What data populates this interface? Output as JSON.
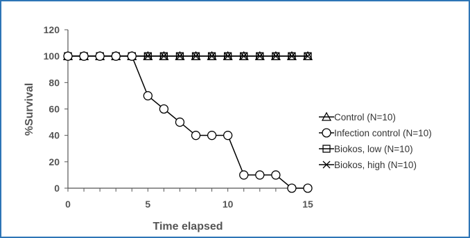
{
  "chart_data": {
    "type": "line",
    "xlabel": "Time elapsed",
    "ylabel": "%Survival",
    "xlim": [
      0,
      15
    ],
    "ylim": [
      0,
      120
    ],
    "x_ticks": [
      0,
      5,
      10,
      15
    ],
    "y_ticks": [
      0,
      20,
      40,
      60,
      80,
      100,
      120
    ],
    "grid": false,
    "legend_position": "right",
    "series": [
      {
        "name": "Control (N=10)",
        "marker": "triangle",
        "x": [
          0,
          1,
          2,
          3,
          4,
          5,
          6,
          7,
          8,
          9,
          10,
          11,
          12,
          13,
          14,
          15
        ],
        "values": [
          100,
          100,
          100,
          100,
          100,
          100,
          100,
          100,
          100,
          100,
          100,
          100,
          100,
          100,
          100,
          100
        ]
      },
      {
        "name": "Infection control (N=10)",
        "marker": "circle",
        "x": [
          0,
          1,
          2,
          3,
          4,
          5,
          6,
          7,
          8,
          9,
          10,
          11,
          12,
          13,
          14,
          15
        ],
        "values": [
          100,
          100,
          100,
          100,
          100,
          70,
          60,
          50,
          40,
          40,
          40,
          10,
          10,
          10,
          0,
          0
        ]
      },
      {
        "name": "Biokos, low (N=10)",
        "marker": "square",
        "x": [
          0,
          1,
          2,
          3,
          4,
          5,
          6,
          7,
          8,
          9,
          10,
          11,
          12,
          13,
          14,
          15
        ],
        "values": [
          100,
          100,
          100,
          100,
          100,
          100,
          100,
          100,
          100,
          100,
          100,
          100,
          100,
          100,
          100,
          100
        ]
      },
      {
        "name": "Biokos, high (N=10)",
        "marker": "x",
        "x": [
          0,
          1,
          2,
          3,
          4,
          5,
          6,
          7,
          8,
          9,
          10,
          11,
          12,
          13,
          14,
          15
        ],
        "values": [
          100,
          100,
          100,
          100,
          100,
          100,
          100,
          100,
          100,
          100,
          100,
          100,
          100,
          100,
          100,
          100
        ]
      }
    ],
    "colors": {
      "line": "#000000",
      "axis": "#555555",
      "border": "#2e75b6"
    }
  }
}
